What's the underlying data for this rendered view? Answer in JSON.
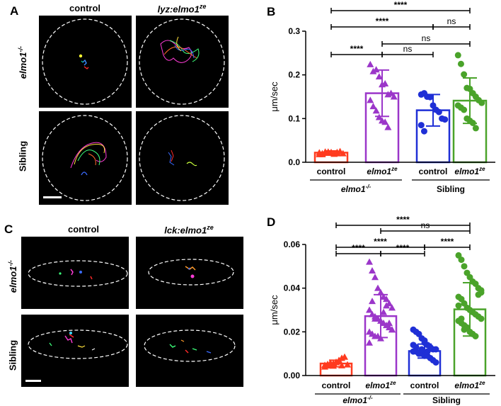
{
  "panelA": {
    "letter": "A",
    "col_labels": [
      "control",
      "lyz:elmo1"
    ],
    "col_label_sup": [
      "",
      "ze"
    ],
    "row_labels": [
      "elmo1",
      "Sibling"
    ],
    "row_label_sup": [
      "-/-",
      ""
    ]
  },
  "panelC": {
    "letter": "C",
    "col_labels": [
      "control",
      "lck:elmo1"
    ],
    "col_label_sup": [
      "",
      "ze"
    ],
    "row_labels": [
      "elmo1",
      "Sibling"
    ],
    "row_label_sup": [
      "-/-",
      ""
    ]
  },
  "colors": {
    "control_mutant": "#ff3b1f",
    "elmo1ze_mutant": "#9b36c9",
    "control_sibling": "#1f2fd6",
    "elmo1ze_sibling": "#4aa32a"
  },
  "chart_data": [
    {
      "panel": "B",
      "type": "bar",
      "ylabel": "μm/sec",
      "ylim": [
        0,
        0.3
      ],
      "yticks": [
        "0.0",
        "0.1",
        "0.2",
        "0.3"
      ],
      "ytick_values": [
        0,
        0.1,
        0.2,
        0.3
      ],
      "categories": [
        "control",
        "elmo1ze",
        "control",
        "elmo1ze"
      ],
      "cat_display": [
        "control",
        "elmo1",
        "control",
        "elmo1"
      ],
      "cat_sup": [
        "",
        "ze",
        "",
        "ze"
      ],
      "groups": [
        {
          "label": "elmo1",
          "sup": "-/-"
        },
        {
          "label": "Sibling",
          "sup": ""
        }
      ],
      "markers": [
        "triangle",
        "triangle",
        "circle",
        "circle"
      ],
      "means": [
        0.022,
        0.158,
        0.119,
        0.141
      ],
      "sd": [
        0.004,
        0.053,
        0.036,
        0.052
      ],
      "points": [
        [
          0.018,
          0.02,
          0.022,
          0.024,
          0.021,
          0.019,
          0.023,
          0.025,
          0.02,
          0.022,
          0.018,
          0.024,
          0.021,
          0.023,
          0.019,
          0.02
        ],
        [
          0.224,
          0.208,
          0.212,
          0.196,
          0.178,
          0.18,
          0.155,
          0.158,
          0.15,
          0.142,
          0.128,
          0.118,
          0.103,
          0.095,
          0.092,
          0.08
        ],
        [
          0.155,
          0.158,
          0.15,
          0.149,
          0.13,
          0.12,
          0.115,
          0.1,
          0.098,
          0.085,
          0.071
        ],
        [
          0.245,
          0.225,
          0.201,
          0.17,
          0.168,
          0.158,
          0.15,
          0.142,
          0.136,
          0.13,
          0.125,
          0.12,
          0.1,
          0.095,
          0.09,
          0.078
        ]
      ],
      "significance": [
        {
          "from": 0,
          "to": 3,
          "label": "****"
        },
        {
          "from": 0,
          "to": 2,
          "label": "****"
        },
        {
          "from": 2,
          "to": 3,
          "label": "ns"
        },
        {
          "from": 1,
          "to": 3,
          "label": "ns"
        },
        {
          "from": 0,
          "to": 1,
          "label": "****"
        },
        {
          "from": 1,
          "to": 2,
          "label": "ns"
        }
      ]
    },
    {
      "panel": "D",
      "type": "bar",
      "ylabel": "μm/sec",
      "ylim": [
        0,
        0.06
      ],
      "yticks": [
        "0.00",
        "0.02",
        "0.04",
        "0.06"
      ],
      "ytick_values": [
        0,
        0.02,
        0.04,
        0.06
      ],
      "categories": [
        "control",
        "elmo1ze",
        "control",
        "elmo1ze"
      ],
      "cat_display": [
        "control",
        "elmo1",
        "control",
        "elmo1"
      ],
      "cat_sup": [
        "",
        "ze",
        "",
        "ze"
      ],
      "groups": [
        {
          "label": "elmo1",
          "sup": "-/-"
        },
        {
          "label": "Sibling",
          "sup": ""
        }
      ],
      "markers": [
        "triangle",
        "triangle",
        "circle",
        "circle"
      ],
      "means": [
        0.0055,
        0.0272,
        0.0112,
        0.0303
      ],
      "sd": [
        0.0015,
        0.0098,
        0.0032,
        0.0122
      ],
      "points": [
        [
          0.004,
          0.0045,
          0.005,
          0.0055,
          0.006,
          0.0065,
          0.008,
          0.0085,
          0.005,
          0.0048,
          0.0052,
          0.0058,
          0.0044,
          0.0062,
          0.007,
          0.0046
        ],
        [
          0.052,
          0.048,
          0.045,
          0.04,
          0.038,
          0.036,
          0.035,
          0.033,
          0.031,
          0.03,
          0.028,
          0.027,
          0.026,
          0.025,
          0.024,
          0.023,
          0.022,
          0.021,
          0.02,
          0.019,
          0.018,
          0.018,
          0.017,
          0.029,
          0.032,
          0.024,
          0.021,
          0.015,
          0.034,
          0.026
        ],
        [
          0.021,
          0.02,
          0.019,
          0.017,
          0.015,
          0.014,
          0.013,
          0.012,
          0.012,
          0.011,
          0.011,
          0.01,
          0.01,
          0.009,
          0.009,
          0.008,
          0.007,
          0.006,
          0.014,
          0.013,
          0.01,
          0.012,
          0.016,
          0.011
        ],
        [
          0.055,
          0.053,
          0.05,
          0.047,
          0.045,
          0.043,
          0.042,
          0.04,
          0.038,
          0.036,
          0.035,
          0.033,
          0.031,
          0.03,
          0.029,
          0.028,
          0.027,
          0.026,
          0.025,
          0.024,
          0.023,
          0.022,
          0.02,
          0.019,
          0.018,
          0.037,
          0.039,
          0.032,
          0.026,
          0.021
        ]
      ],
      "significance": [
        {
          "from": 0,
          "to": 3,
          "label": "****"
        },
        {
          "from": 1,
          "to": 3,
          "label": "ns"
        },
        {
          "from": 0,
          "to": 2,
          "label": "****"
        },
        {
          "from": 0,
          "to": 1,
          "label": "****"
        },
        {
          "from": 1,
          "to": 2,
          "label": "****"
        },
        {
          "from": 2,
          "to": 3,
          "label": "****"
        }
      ]
    }
  ]
}
